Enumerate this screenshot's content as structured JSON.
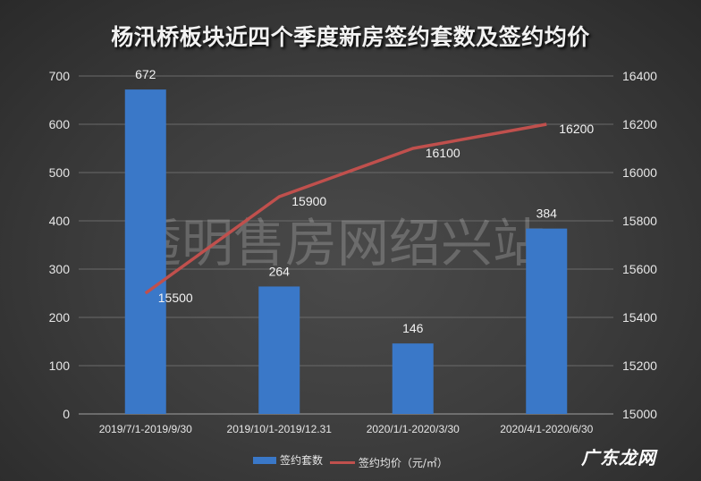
{
  "title": "杨汛桥板块近四个季度新房签约套数及签约均价",
  "watermark": "透明售房网绍兴站",
  "corner_mark": "广东龙网",
  "legend": {
    "bar_label": "签约套数",
    "line_label": "签约均价（元/㎡）"
  },
  "colors": {
    "bar": "#3a78c8",
    "line": "#c0504d",
    "background": "#404040",
    "text": "#e6e6e6"
  },
  "chart_data": {
    "type": "bar+line",
    "title": "杨汛桥板块近四个季度新房签约套数及签约均价",
    "categories": [
      "2019/7/1-2019/9/30",
      "2019/10/1-2019/12.31",
      "2020/1/1-2020/3/30",
      "2020/4/1-2020/6/30"
    ],
    "series": [
      {
        "name": "签约套数",
        "type": "bar",
        "axis": "left",
        "values": [
          672,
          264,
          146,
          384
        ]
      },
      {
        "name": "签约均价（元/㎡）",
        "type": "line",
        "axis": "right",
        "values": [
          15500,
          15900,
          16100,
          16200
        ]
      }
    ],
    "y_left": {
      "ticks": [
        0,
        100,
        200,
        300,
        400,
        500,
        600,
        700
      ],
      "ylim": [
        0,
        700
      ]
    },
    "y_right": {
      "ticks": [
        15000,
        15200,
        15400,
        15600,
        15800,
        16000,
        16200,
        16400
      ],
      "ylim": [
        15000,
        16400
      ]
    },
    "grid": true,
    "legend_position": "bottom"
  }
}
